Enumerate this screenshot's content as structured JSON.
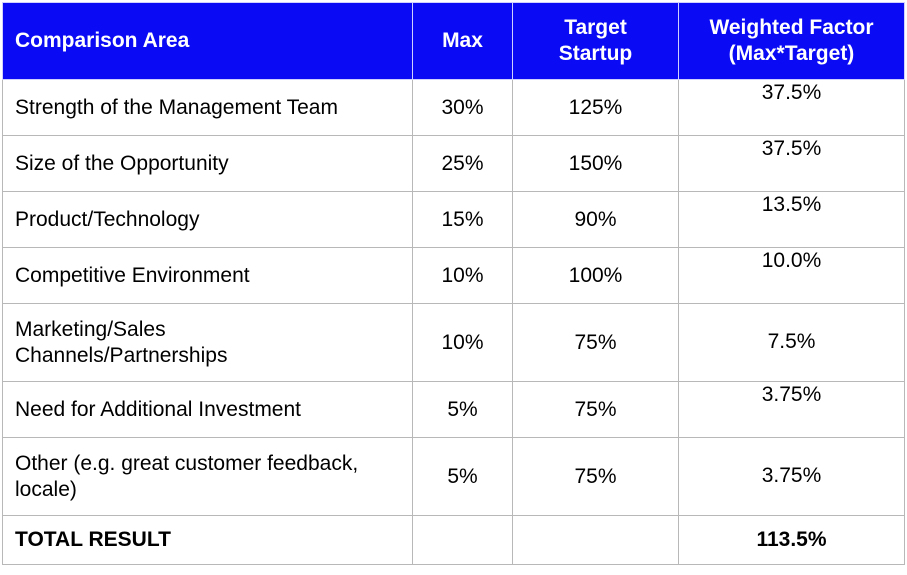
{
  "headers": {
    "area": "Comparison Area",
    "max": "Max",
    "target_line1": "Target",
    "target_line2": "Startup",
    "weighted_line1": "Weighted Factor",
    "weighted_line2": "(Max*Target)"
  },
  "rows": [
    {
      "area": "Strength of the Management Team",
      "max": "30%",
      "target": "125%",
      "weighted": "37.5%"
    },
    {
      "area": "Size of the Opportunity",
      "max": "25%",
      "target": "150%",
      "weighted": "37.5%"
    },
    {
      "area": "Product/Technology",
      "max": "15%",
      "target": "90%",
      "weighted": "13.5%"
    },
    {
      "area": "Competitive Environment",
      "max": "10%",
      "target": "100%",
      "weighted": "10.0%"
    },
    {
      "area_line1": "Marketing/Sales",
      "area_line2": "Channels/Partnerships",
      "max": "10%",
      "target": "75%",
      "weighted": "7.5%"
    },
    {
      "area": "Need for Additional Investment",
      "max": "5%",
      "target": "75%",
      "weighted": "3.75%"
    },
    {
      "area_line1": "Other (e.g. great customer feedback,",
      "area_line2": "locale)",
      "max": "5%",
      "target": "75%",
      "weighted": "3.75%"
    }
  ],
  "total": {
    "label": "TOTAL RESULT",
    "value": "113.5%"
  },
  "colors": {
    "header_bg": "#0a0af5",
    "header_text": "#ffffff",
    "target_text": "#2c5c78",
    "weighted_text": "#4caf50",
    "total_text": "#e66a4a"
  }
}
